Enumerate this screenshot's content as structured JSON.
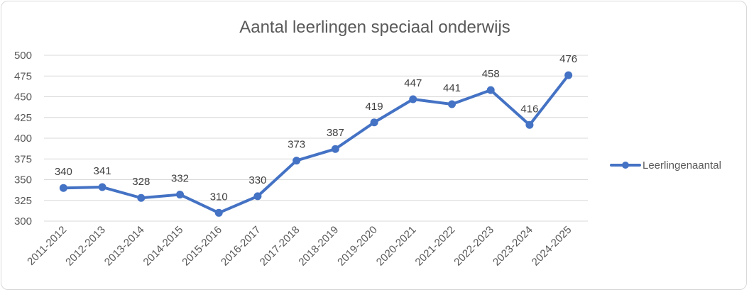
{
  "chart_data": {
    "type": "line",
    "title": "Aantal leerlingen speciaal onderwijs",
    "xlabel": "",
    "ylabel": "",
    "categories": [
      "2011-2012",
      "2012-2013",
      "2013-2014",
      "2014-2015",
      "2015-2016",
      "2016-2017",
      "2017-2018",
      "2018-2019",
      "2019-2020",
      "2020-2021",
      "2021-2022",
      "2022-2023",
      "2023-2024",
      "2024-2025"
    ],
    "series": [
      {
        "name": "Leerlingenaantal",
        "values": [
          340,
          341,
          328,
          332,
          310,
          330,
          373,
          387,
          419,
          447,
          441,
          458,
          416,
          476
        ],
        "color": "#4472c4"
      }
    ],
    "ylim": [
      300,
      500
    ],
    "yticks": [
      300,
      325,
      350,
      375,
      400,
      425,
      450,
      475,
      500
    ],
    "grid": true,
    "legend_position": "right",
    "data_labels": true
  }
}
